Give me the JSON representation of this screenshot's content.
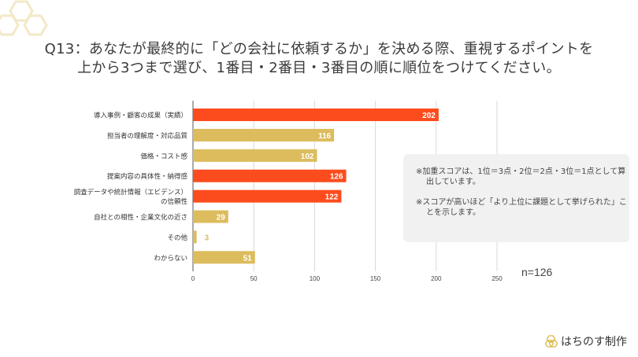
{
  "title_line1": "Q13：あなたが最終的に「どの会社に依頼するか」を決める際、重視するポイントを",
  "title_line2": "上から3つまで選び、1番目・2番目・3番目の順に順位をつけてください。",
  "chart_data": {
    "type": "bar",
    "orientation": "horizontal",
    "categories": [
      "導入事例・顧客の成果（実績）",
      "担当者の理解度・対応品質",
      "価格・コスト感",
      "提案内容の具体性・納得感",
      "調査データや統計情報（エビデンス）の信頼性",
      "自社との相性・企業文化の近さ",
      "その他",
      "わからない"
    ],
    "category_lines": [
      [
        "導入事例・顧客の成果（実績）"
      ],
      [
        "担当者の理解度・対応品質"
      ],
      [
        "価格・コスト感"
      ],
      [
        "提案内容の具体性・納得感"
      ],
      [
        "調査データや統計情報（エビデンス）",
        "の信頼性"
      ],
      [
        "自社との相性・企業文化の近さ"
      ],
      [
        "その他"
      ],
      [
        "わからない"
      ]
    ],
    "values": [
      202,
      116,
      102,
      126,
      122,
      29,
      3,
      51
    ],
    "highlight": [
      true,
      false,
      false,
      true,
      true,
      false,
      false,
      false
    ],
    "xlim": [
      0,
      250
    ],
    "xticks": [
      0,
      50,
      100,
      150,
      200,
      250
    ],
    "grid": true,
    "colors": {
      "highlight": "#fc4c1e",
      "normal": "#dcbc5c"
    }
  },
  "notes": [
    "※加重スコアは、1位＝3点・2位＝2点・3位＝1点として算出しています。",
    "※スコアが高いほど「より上位に課題として挙げられた」ことを示します。"
  ],
  "sample_size": "n=126",
  "brand": "はちのす制作"
}
